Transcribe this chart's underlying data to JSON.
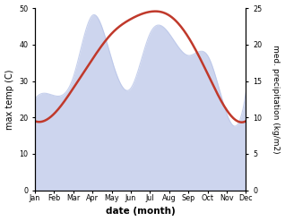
{
  "months": [
    "Jan",
    "Feb",
    "Mar",
    "Apr",
    "May",
    "Jun",
    "Jul",
    "Aug",
    "Sep",
    "Oct",
    "Nov",
    "Dec"
  ],
  "temperature": [
    19,
    21,
    28,
    36,
    43,
    47,
    49,
    48,
    42,
    32,
    22,
    19
  ],
  "precipitation_kg": [
    12.5,
    13.0,
    15.5,
    24.0,
    18.0,
    14.0,
    21.5,
    21.5,
    18.5,
    18.5,
    10.5,
    13.5
  ],
  "temp_color": "#c0392b",
  "precip_color": "#b8c4e8",
  "left_ylim": [
    0,
    50
  ],
  "right_ylim": [
    0,
    25
  ],
  "left_yticks": [
    0,
    10,
    20,
    30,
    40,
    50
  ],
  "right_yticks": [
    0,
    5,
    10,
    15,
    20,
    25
  ],
  "xlabel": "date (month)",
  "ylabel_left": "max temp (C)",
  "ylabel_right": "med. precipitation (kg/m2)",
  "bg_color": "#ffffff",
  "fig_width": 3.18,
  "fig_height": 2.47,
  "dpi": 100
}
